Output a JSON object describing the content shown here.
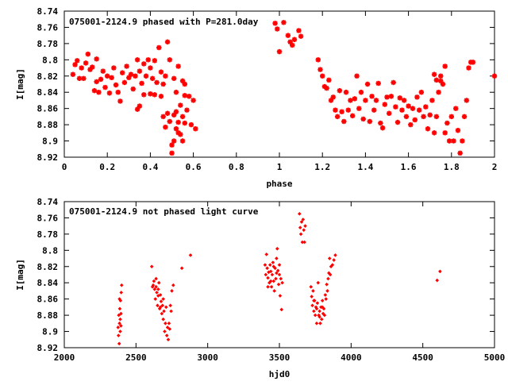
{
  "chart_data": [
    {
      "type": "scatter",
      "title": "075001-2124.9 phased with P=281.0day",
      "xlabel": "phase",
      "ylabel": "I[mag]",
      "xlim": [
        0,
        2
      ],
      "ylim": [
        8.92,
        8.74
      ],
      "y_inverted": true,
      "x_ticks": [
        "0",
        "0.2",
        "0.4",
        "0.6",
        "0.8",
        "1",
        "1.2",
        "1.4",
        "1.6",
        "1.8",
        "2"
      ],
      "y_ticks": [
        "8.74",
        "8.76",
        "8.78",
        "8.8",
        "8.82",
        "8.84",
        "8.86",
        "8.88",
        "8.9",
        "8.92"
      ],
      "grid": false,
      "marker": "star",
      "color": "#ff0000",
      "points": [
        [
          0.04,
          8.818
        ],
        [
          0.05,
          8.806
        ],
        [
          0.06,
          8.801
        ],
        [
          0.07,
          8.823
        ],
        [
          0.08,
          8.81
        ],
        [
          0.09,
          8.823
        ],
        [
          0.1,
          8.804
        ],
        [
          0.11,
          8.793
        ],
        [
          0.12,
          8.812
        ],
        [
          0.13,
          8.809
        ],
        [
          0.14,
          8.838
        ],
        [
          0.15,
          8.827
        ],
        [
          0.16,
          8.84
        ],
        [
          0.17,
          8.824
        ],
        [
          0.15,
          8.799
        ],
        [
          0.18,
          8.814
        ],
        [
          0.19,
          8.834
        ],
        [
          0.2,
          8.82
        ],
        [
          0.21,
          8.841
        ],
        [
          0.22,
          8.822
        ],
        [
          0.23,
          8.81
        ],
        [
          0.24,
          8.831
        ],
        [
          0.25,
          8.84
        ],
        [
          0.26,
          8.851
        ],
        [
          0.27,
          8.816
        ],
        [
          0.28,
          8.828
        ],
        [
          0.29,
          8.808
        ],
        [
          0.3,
          8.822
        ],
        [
          0.31,
          8.818
        ],
        [
          0.32,
          8.836
        ],
        [
          0.33,
          8.82
        ],
        [
          0.34,
          8.8
        ],
        [
          0.35,
          8.814
        ],
        [
          0.36,
          8.829
        ],
        [
          0.37,
          8.805
        ],
        [
          0.38,
          8.82
        ],
        [
          0.39,
          8.8
        ],
        [
          0.4,
          8.81
        ],
        [
          0.41,
          8.823
        ],
        [
          0.42,
          8.843
        ],
        [
          0.43,
          8.828
        ],
        [
          0.34,
          8.861
        ],
        [
          0.35,
          8.857
        ],
        [
          0.37,
          8.843
        ],
        [
          0.4,
          8.842
        ],
        [
          0.42,
          8.801
        ],
        [
          0.44,
          8.785
        ],
        [
          0.45,
          8.815
        ],
        [
          0.46,
          8.83
        ],
        [
          0.47,
          8.82
        ],
        [
          0.48,
          8.778
        ],
        [
          0.49,
          8.8
        ],
        [
          0.45,
          8.845
        ],
        [
          0.46,
          8.87
        ],
        [
          0.47,
          8.883
        ],
        [
          0.48,
          8.866
        ],
        [
          0.49,
          8.876
        ],
        [
          0.5,
          8.905
        ],
        [
          0.5,
          8.915
        ],
        [
          0.51,
          8.9
        ],
        [
          0.51,
          8.868
        ],
        [
          0.52,
          8.885
        ],
        [
          0.52,
          8.864
        ],
        [
          0.53,
          8.877
        ],
        [
          0.53,
          8.89
        ],
        [
          0.54,
          8.892
        ],
        [
          0.54,
          8.856
        ],
        [
          0.55,
          8.87
        ],
        [
          0.55,
          8.9
        ],
        [
          0.56,
          8.878
        ],
        [
          0.56,
          8.844
        ],
        [
          0.57,
          8.862
        ],
        [
          0.58,
          8.845
        ],
        [
          0.59,
          8.88
        ],
        [
          0.6,
          8.85
        ],
        [
          0.61,
          8.885
        ],
        [
          0.51,
          8.823
        ],
        [
          0.52,
          8.84
        ],
        [
          0.53,
          8.808
        ],
        [
          0.55,
          8.826
        ],
        [
          0.56,
          8.83
        ],
        [
          0.98,
          8.755
        ],
        [
          0.99,
          8.762
        ],
        [
          1.0,
          8.79
        ],
        [
          1.02,
          8.754
        ],
        [
          1.04,
          8.77
        ],
        [
          1.05,
          8.778
        ],
        [
          1.06,
          8.782
        ],
        [
          1.07,
          8.775
        ],
        [
          1.09,
          8.764
        ],
        [
          1.1,
          8.771
        ],
        [
          1.18,
          8.8
        ],
        [
          1.19,
          8.812
        ],
        [
          1.2,
          8.82
        ],
        [
          1.21,
          8.833
        ],
        [
          1.22,
          8.835
        ],
        [
          1.23,
          8.825
        ],
        [
          1.24,
          8.85
        ],
        [
          1.25,
          8.846
        ],
        [
          1.26,
          8.862
        ],
        [
          1.27,
          8.87
        ],
        [
          1.28,
          8.838
        ],
        [
          1.29,
          8.864
        ],
        [
          1.3,
          8.876
        ],
        [
          1.31,
          8.84
        ],
        [
          1.32,
          8.862
        ],
        [
          1.33,
          8.85
        ],
        [
          1.34,
          8.869
        ],
        [
          1.35,
          8.848
        ],
        [
          1.36,
          8.82
        ],
        [
          1.37,
          8.86
        ],
        [
          1.38,
          8.84
        ],
        [
          1.39,
          8.873
        ],
        [
          1.4,
          8.85
        ],
        [
          1.41,
          8.83
        ],
        [
          1.42,
          8.876
        ],
        [
          1.43,
          8.845
        ],
        [
          1.44,
          8.862
        ],
        [
          1.45,
          8.85
        ],
        [
          1.46,
          8.829
        ],
        [
          1.47,
          8.878
        ],
        [
          1.48,
          8.884
        ],
        [
          1.49,
          8.855
        ],
        [
          1.5,
          8.846
        ],
        [
          1.51,
          8.866
        ],
        [
          1.52,
          8.845
        ],
        [
          1.53,
          8.828
        ],
        [
          1.54,
          8.858
        ],
        [
          1.55,
          8.877
        ],
        [
          1.56,
          8.847
        ],
        [
          1.57,
          8.862
        ],
        [
          1.58,
          8.85
        ],
        [
          1.59,
          8.87
        ],
        [
          1.6,
          8.857
        ],
        [
          1.61,
          8.88
        ],
        [
          1.62,
          8.86
        ],
        [
          1.63,
          8.874
        ],
        [
          1.64,
          8.846
        ],
        [
          1.65,
          8.862
        ],
        [
          1.66,
          8.84
        ],
        [
          1.67,
          8.87
        ],
        [
          1.68,
          8.858
        ],
        [
          1.69,
          8.885
        ],
        [
          1.7,
          8.868
        ],
        [
          1.71,
          8.85
        ],
        [
          1.72,
          8.89
        ],
        [
          1.73,
          8.87
        ],
        [
          1.74,
          8.84
        ],
        [
          1.75,
          8.826
        ],
        [
          1.76,
          8.83
        ],
        [
          1.77,
          8.89
        ],
        [
          1.78,
          8.878
        ],
        [
          1.79,
          8.9
        ],
        [
          1.8,
          8.87
        ],
        [
          1.81,
          8.9
        ],
        [
          1.82,
          8.86
        ],
        [
          1.83,
          8.887
        ],
        [
          1.84,
          8.915
        ],
        [
          1.85,
          8.9
        ],
        [
          1.86,
          8.87
        ],
        [
          1.87,
          8.85
        ],
        [
          1.88,
          8.81
        ],
        [
          1.89,
          8.803
        ],
        [
          1.9,
          8.803
        ],
        [
          1.72,
          8.818
        ],
        [
          1.73,
          8.825
        ],
        [
          1.75,
          8.82
        ],
        [
          1.77,
          8.808
        ],
        [
          2.0,
          8.82
        ]
      ]
    },
    {
      "type": "scatter",
      "title": "075001-2124.9 not phased light curve",
      "xlabel": "hjd0",
      "ylabel": "I[mag]",
      "xlim": [
        2000,
        5000
      ],
      "ylim": [
        8.92,
        8.74
      ],
      "y_inverted": true,
      "x_ticks": [
        "2000",
        "2500",
        "3000",
        "3500",
        "4000",
        "4500",
        "5000"
      ],
      "y_ticks": [
        "8.74",
        "8.76",
        "8.78",
        "8.8",
        "8.82",
        "8.84",
        "8.86",
        "8.88",
        "8.9",
        "8.92"
      ],
      "grid": false,
      "marker": "diamond",
      "color": "#ff0000",
      "points": [
        [
          2375,
          8.895
        ],
        [
          2378,
          8.905
        ],
        [
          2380,
          8.88
        ],
        [
          2383,
          8.915
        ],
        [
          2385,
          8.89
        ],
        [
          2387,
          8.872
        ],
        [
          2390,
          8.9
        ],
        [
          2392,
          8.862
        ],
        [
          2395,
          8.878
        ],
        [
          2397,
          8.852
        ],
        [
          2400,
          8.843
        ],
        [
          2385,
          8.86
        ],
        [
          2390,
          8.885
        ],
        [
          2395,
          8.893
        ],
        [
          2610,
          8.82
        ],
        [
          2615,
          8.845
        ],
        [
          2620,
          8.843
        ],
        [
          2625,
          8.838
        ],
        [
          2630,
          8.848
        ],
        [
          2635,
          8.86
        ],
        [
          2640,
          8.845
        ],
        [
          2645,
          8.852
        ],
        [
          2650,
          8.868
        ],
        [
          2655,
          8.856
        ],
        [
          2660,
          8.84
        ],
        [
          2665,
          8.872
        ],
        [
          2670,
          8.87
        ],
        [
          2675,
          8.863
        ],
        [
          2680,
          8.878
        ],
        [
          2685,
          8.868
        ],
        [
          2690,
          8.885
        ],
        [
          2695,
          8.875
        ],
        [
          2700,
          8.9
        ],
        [
          2705,
          8.89
        ],
        [
          2710,
          8.87
        ],
        [
          2715,
          8.905
        ],
        [
          2720,
          8.895
        ],
        [
          2725,
          8.91
        ],
        [
          2730,
          8.89
        ],
        [
          2735,
          8.897
        ],
        [
          2740,
          8.868
        ],
        [
          2745,
          8.875
        ],
        [
          2750,
          8.85
        ],
        [
          2760,
          8.843
        ],
        [
          2640,
          8.835
        ],
        [
          2655,
          8.848
        ],
        [
          2670,
          8.855
        ],
        [
          2690,
          8.86
        ],
        [
          2820,
          8.822
        ],
        [
          2880,
          8.806
        ],
        [
          3400,
          8.818
        ],
        [
          3405,
          8.83
        ],
        [
          3410,
          8.805
        ],
        [
          3415,
          8.822
        ],
        [
          3420,
          8.834
        ],
        [
          3425,
          8.827
        ],
        [
          3430,
          8.84
        ],
        [
          3435,
          8.818
        ],
        [
          3440,
          8.826
        ],
        [
          3445,
          8.845
        ],
        [
          3450,
          8.83
        ],
        [
          3455,
          8.815
        ],
        [
          3460,
          8.838
        ],
        [
          3465,
          8.85
        ],
        [
          3470,
          8.822
        ],
        [
          3475,
          8.835
        ],
        [
          3480,
          8.81
        ],
        [
          3485,
          8.798
        ],
        [
          3490,
          8.825
        ],
        [
          3495,
          8.842
        ],
        [
          3500,
          8.83
        ],
        [
          3505,
          8.856
        ],
        [
          3510,
          8.835
        ],
        [
          3515,
          8.873
        ],
        [
          3520,
          8.84
        ],
        [
          3420,
          8.845
        ],
        [
          3440,
          8.838
        ],
        [
          3460,
          8.82
        ],
        [
          3480,
          8.828
        ],
        [
          3500,
          8.818
        ],
        [
          3640,
          8.755
        ],
        [
          3645,
          8.772
        ],
        [
          3650,
          8.78
        ],
        [
          3655,
          8.765
        ],
        [
          3660,
          8.79
        ],
        [
          3665,
          8.762
        ],
        [
          3670,
          8.775
        ],
        [
          3675,
          8.79
        ],
        [
          3680,
          8.77
        ],
        [
          3720,
          8.845
        ],
        [
          3725,
          8.857
        ],
        [
          3730,
          8.868
        ],
        [
          3735,
          8.85
        ],
        [
          3740,
          8.875
        ],
        [
          3745,
          8.862
        ],
        [
          3750,
          8.88
        ],
        [
          3755,
          8.87
        ],
        [
          3760,
          8.89
        ],
        [
          3765,
          8.865
        ],
        [
          3770,
          8.84
        ],
        [
          3775,
          8.88
        ],
        [
          3780,
          8.875
        ],
        [
          3785,
          8.89
        ],
        [
          3790,
          8.87
        ],
        [
          3795,
          8.885
        ],
        [
          3800,
          8.862
        ],
        [
          3805,
          8.878
        ],
        [
          3810,
          8.872
        ],
        [
          3815,
          8.88
        ],
        [
          3820,
          8.855
        ],
        [
          3825,
          8.86
        ],
        [
          3830,
          8.842
        ],
        [
          3835,
          8.85
        ],
        [
          3840,
          8.835
        ],
        [
          3845,
          8.828
        ],
        [
          3850,
          8.81
        ],
        [
          3855,
          8.83
        ],
        [
          3860,
          8.82
        ],
        [
          3870,
          8.818
        ],
        [
          3880,
          8.812
        ],
        [
          3890,
          8.806
        ],
        [
          3740,
          8.862
        ],
        [
          3760,
          8.872
        ],
        [
          3780,
          8.882
        ],
        [
          3800,
          8.87
        ],
        [
          4600,
          8.837
        ],
        [
          4620,
          8.826
        ]
      ]
    }
  ]
}
